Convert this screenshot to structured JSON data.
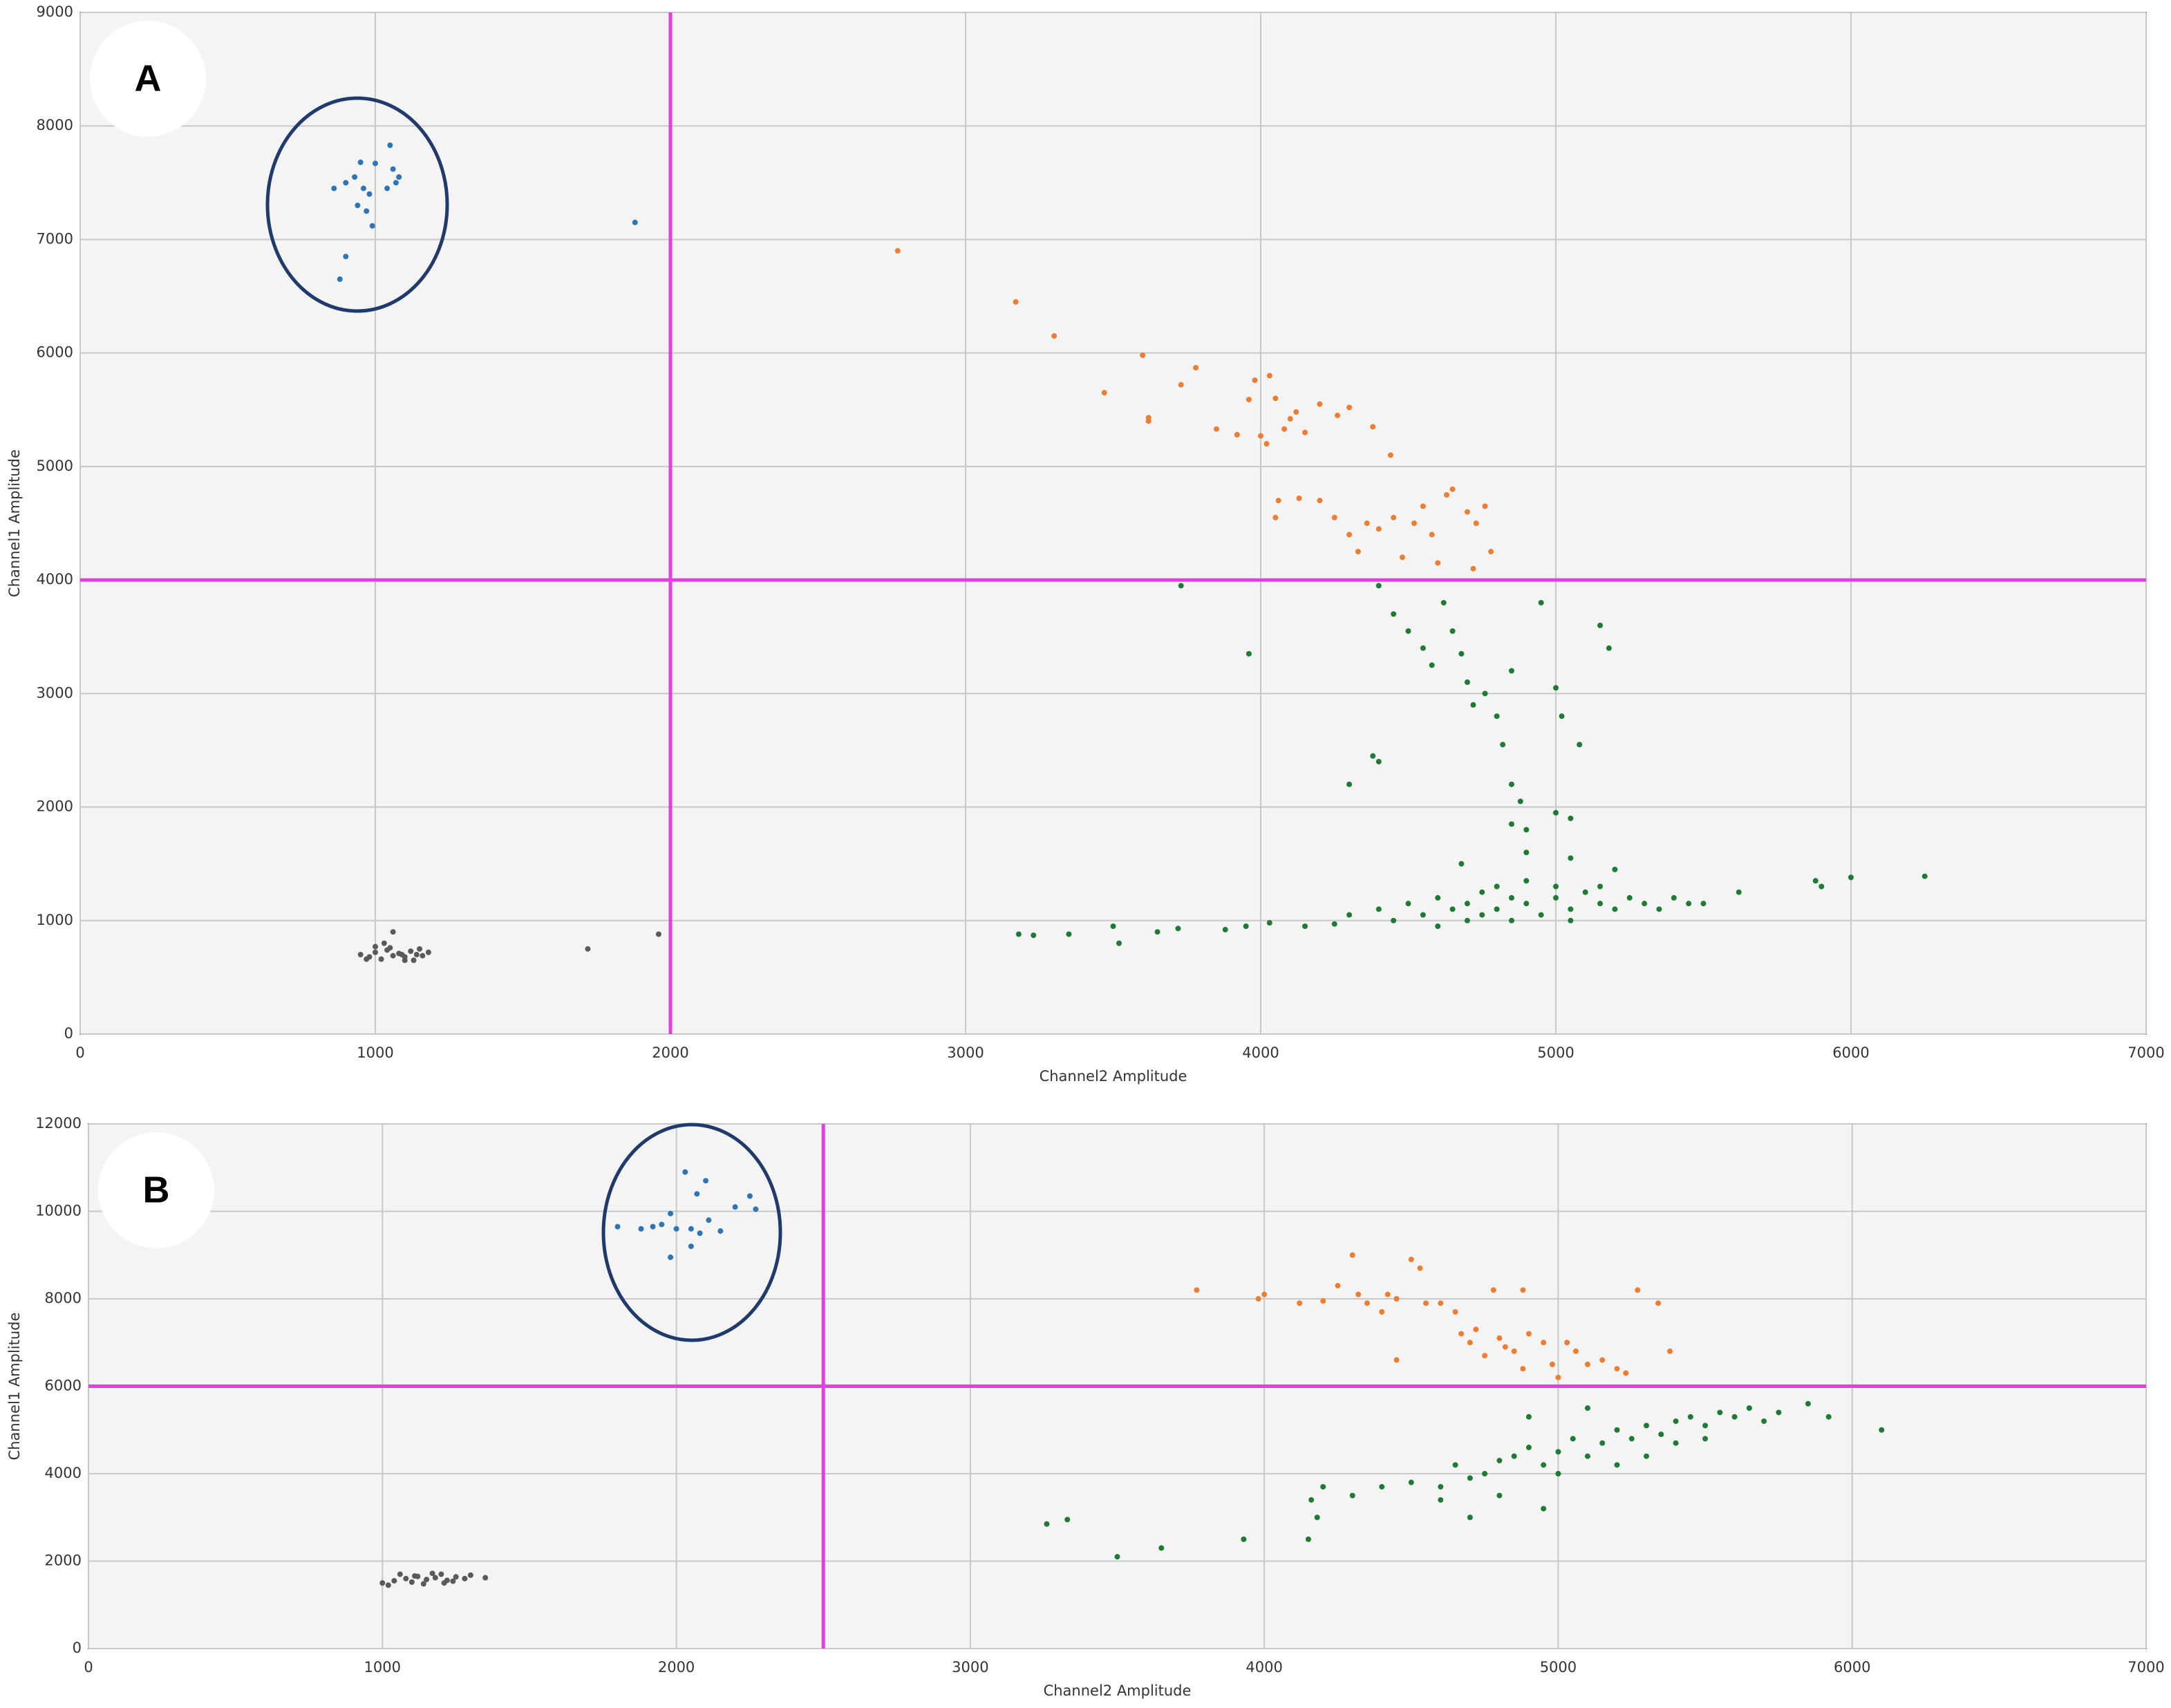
{
  "chart_data": [
    {
      "type": "scatter",
      "panel_label": "A",
      "xlabel": "Channel2 Amplitude",
      "ylabel": "Channel1 Amplitude",
      "xlim": [
        0,
        7000
      ],
      "xticks": [
        0,
        1000,
        2000,
        3000,
        4000,
        5000,
        6000,
        7000
      ],
      "ylim": [
        0,
        9000
      ],
      "yticks": [
        0,
        1000,
        2000,
        3000,
        4000,
        5000,
        6000,
        7000,
        8000,
        9000
      ],
      "grid": true,
      "thresholds": {
        "x": 2000,
        "y": 4000,
        "color": "#e040e0"
      },
      "series": [
        {
          "color": "#5a5a5a",
          "x": [
            950,
            980,
            1000,
            1020,
            1040,
            1060,
            1080,
            1100,
            1120,
            1140,
            1160,
            1180,
            1000,
            1050,
            1100,
            1150,
            970,
            1030,
            1090,
            1130,
            1060,
            1720,
            1960
          ],
          "values": [
            700,
            680,
            720,
            660,
            740,
            690,
            710,
            680,
            730,
            700,
            690,
            720,
            770,
            760,
            650,
            750,
            660,
            800,
            700,
            650,
            900,
            750,
            880
          ]
        },
        {
          "color": "#2e75b6",
          "x": [
            860,
            900,
            930,
            950,
            960,
            980,
            1000,
            1040,
            1050,
            1060,
            1070,
            1080,
            940,
            970,
            990,
            900,
            880,
            1880
          ],
          "values": [
            7450,
            7500,
            7550,
            7680,
            7450,
            7400,
            7670,
            7450,
            7830,
            7620,
            7500,
            7550,
            7300,
            7250,
            7120,
            6850,
            6650,
            7150
          ]
        },
        {
          "color": "#ed7d31",
          "x": [
            2770,
            3170,
            3300,
            3470,
            3600,
            3620,
            3620,
            3730,
            3780,
            3850,
            3920,
            3960,
            3980,
            4000,
            4020,
            4030,
            4050,
            4080,
            4100,
            4120,
            4150,
            4200,
            4260,
            4300,
            4380,
            4440,
            4050,
            4060,
            4130,
            4200,
            4250,
            4300,
            4330,
            4360,
            4400,
            4450,
            4480,
            4520,
            4550,
            4580,
            4600,
            4630,
            4650,
            4700,
            4730,
            4760,
            4780,
            4720
          ],
          "values": [
            6900,
            6450,
            6150,
            5650,
            5980,
            5430,
            5400,
            5720,
            5870,
            5330,
            5280,
            5590,
            5760,
            5270,
            5200,
            5800,
            5600,
            5330,
            5420,
            5480,
            5300,
            5550,
            5450,
            5520,
            5350,
            5100,
            4550,
            4700,
            4720,
            4700,
            4550,
            4400,
            4250,
            4500,
            4450,
            4550,
            4200,
            4500,
            4650,
            4400,
            4150,
            4750,
            4800,
            4600,
            4500,
            4650,
            4250,
            4100
          ]
        },
        {
          "color": "#1e7b34",
          "x": [
            3180,
            3230,
            3350,
            3500,
            3520,
            3650,
            3720,
            3880,
            3950,
            3730,
            3960,
            4030,
            4150,
            4250,
            4300,
            4380,
            4400,
            4400,
            4450,
            4500,
            4550,
            4580,
            4620,
            4650,
            4680,
            4700,
            4720,
            4760,
            4800,
            4850,
            4820,
            4850,
            4880,
            4850,
            4900,
            5000,
            5020,
            5080,
            5050,
            5150,
            5180,
            4950,
            5000,
            4300,
            4400,
            4450,
            4500,
            4550,
            4600,
            4650,
            4700,
            4750,
            4800,
            4850,
            4900,
            4950,
            5000,
            5050,
            5100,
            5150,
            5200,
            5250,
            5300,
            5350,
            5400,
            5450,
            5500,
            5620,
            4700,
            4800,
            4900,
            5000,
            4750,
            4850,
            5050,
            5150,
            4600,
            5880,
            5900,
            6000,
            6250,
            4680,
            4900,
            5050,
            5200
          ],
          "values": [
            880,
            870,
            880,
            950,
            800,
            900,
            930,
            920,
            950,
            3950,
            3350,
            980,
            950,
            970,
            2200,
            2450,
            2400,
            3950,
            3700,
            3550,
            3400,
            3250,
            3800,
            3550,
            3350,
            3100,
            2900,
            3000,
            2800,
            3200,
            2550,
            2200,
            2050,
            1850,
            1800,
            3050,
            2800,
            2550,
            1900,
            3600,
            3400,
            3800,
            1950,
            1050,
            1100,
            1000,
            1150,
            1050,
            1200,
            1100,
            1150,
            1250,
            1100,
            1200,
            1150,
            1050,
            1200,
            1100,
            1250,
            1150,
            1100,
            1200,
            1150,
            1100,
            1200,
            1150,
            1150,
            1250,
            1000,
            1300,
            1350,
            1300,
            1050,
            1000,
            1000,
            1300,
            950,
            1350,
            1300,
            1380,
            1390,
            1500,
            1600,
            1550,
            1450
          ]
        }
      ]
    },
    {
      "type": "scatter",
      "panel_label": "B",
      "xlabel": "Channel2 Amplitude",
      "ylabel": "Channel1 Amplitude",
      "xlim": [
        0,
        7000
      ],
      "xticks": [
        0,
        1000,
        2000,
        3000,
        4000,
        5000,
        6000,
        7000
      ],
      "ylim": [
        0,
        12000
      ],
      "yticks": [
        0,
        2000,
        4000,
        6000,
        8000,
        10000,
        12000
      ],
      "grid": true,
      "thresholds": {
        "x": 2500,
        "y": 6000,
        "color": "#e040e0"
      },
      "series": [
        {
          "color": "#5a5a5a",
          "x": [
            1000,
            1040,
            1080,
            1100,
            1120,
            1150,
            1180,
            1200,
            1220,
            1250,
            1280,
            1300,
            1060,
            1140,
            1210,
            1350,
            1020,
            1170,
            1240,
            1110
          ],
          "values": [
            1500,
            1550,
            1600,
            1520,
            1650,
            1580,
            1620,
            1700,
            1560,
            1640,
            1600,
            1680,
            1700,
            1480,
            1500,
            1620,
            1450,
            1720,
            1540,
            1660
          ]
        },
        {
          "color": "#2e75b6",
          "x": [
            1800,
            1880,
            1920,
            1950,
            1980,
            1980,
            2000,
            2030,
            2050,
            2050,
            2070,
            2080,
            2100,
            2110,
            2150,
            2200,
            2250,
            2270
          ],
          "values": [
            9650,
            9600,
            9650,
            9700,
            9950,
            8950,
            9600,
            10900,
            9600,
            9200,
            10400,
            9500,
            10700,
            9800,
            9550,
            10100,
            10350,
            10050
          ]
        },
        {
          "color": "#ed7d31",
          "x": [
            3770,
            3980,
            4000,
            4120,
            4200,
            4250,
            4300,
            4320,
            4350,
            4400,
            4420,
            4450,
            4500,
            4530,
            4550,
            4600,
            4650,
            4670,
            4700,
            4720,
            4750,
            4780,
            4800,
            4820,
            4850,
            4880,
            4900,
            4950,
            4980,
            5000,
            5030,
            5060,
            5100,
            5150,
            5200,
            5270,
            5340,
            4450,
            4880,
            5230,
            5380
          ],
          "values": [
            8200,
            8000,
            8100,
            7900,
            7950,
            8300,
            9000,
            8100,
            7900,
            7700,
            8100,
            8000,
            8900,
            8700,
            7900,
            7900,
            7700,
            7200,
            7000,
            7300,
            6700,
            8200,
            7100,
            6900,
            6800,
            8200,
            7200,
            7000,
            6500,
            6200,
            7000,
            6800,
            6500,
            6600,
            6400,
            8200,
            7900,
            6600,
            6400,
            6300,
            6800
          ]
        },
        {
          "color": "#1e7b34",
          "x": [
            3260,
            3330,
            3500,
            3650,
            3930,
            4150,
            4180,
            4160,
            4200,
            4300,
            4400,
            4500,
            4600,
            4700,
            4650,
            4750,
            4800,
            4800,
            4850,
            4900,
            4950,
            4950,
            5000,
            5050,
            5100,
            5150,
            5200,
            5250,
            5300,
            5350,
            5400,
            5450,
            5500,
            5550,
            5600,
            5650,
            5700,
            5750,
            5850,
            5920,
            6100,
            5000,
            4900,
            5100,
            5300,
            5500,
            4600,
            4700,
            5200,
            5400
          ],
          "values": [
            2850,
            2950,
            2100,
            2300,
            2500,
            2500,
            3000,
            3400,
            3700,
            3500,
            3700,
            3800,
            3700,
            3900,
            4200,
            4000,
            4300,
            3500,
            4400,
            4600,
            4200,
            3200,
            4500,
            4800,
            4400,
            4700,
            5000,
            4800,
            5100,
            4900,
            5200,
            5300,
            5100,
            5400,
            5300,
            5500,
            5200,
            5400,
            5600,
            5300,
            5000,
            4000,
            5300,
            5500,
            4400,
            4800,
            3400,
            3000,
            4200,
            4700
          ]
        }
      ]
    }
  ]
}
